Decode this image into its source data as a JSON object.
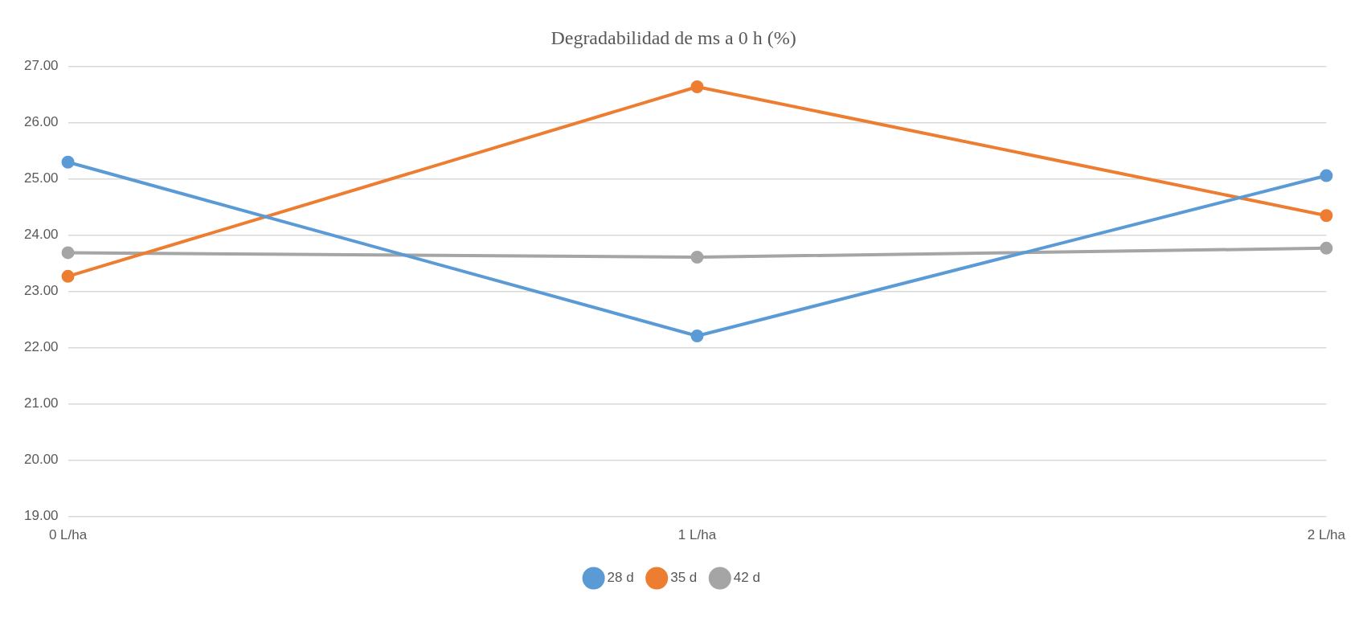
{
  "chart_data": {
    "type": "line",
    "title": "Degradabilidad de ms a 0 h (%)",
    "categories": [
      "0 L/ha",
      "1 L/ha",
      "2 L/ha"
    ],
    "series": [
      {
        "name": "28 d",
        "color": "#5b9bd5",
        "values": [
          25.3,
          22.21,
          25.06
        ]
      },
      {
        "name": "35 d",
        "color": "#ed7d31",
        "values": [
          23.27,
          26.64,
          24.35
        ]
      },
      {
        "name": "42 d",
        "color": "#a5a5a5",
        "values": [
          23.69,
          23.61,
          23.77
        ]
      }
    ],
    "ylim": [
      19,
      27
    ],
    "yticks": [
      {
        "value": 19,
        "label": "19.00"
      },
      {
        "value": 20,
        "label": "20.00"
      },
      {
        "value": 21,
        "label": "21.00"
      },
      {
        "value": 22,
        "label": "22.00"
      },
      {
        "value": 23,
        "label": "23.00"
      },
      {
        "value": 24,
        "label": "24.00"
      },
      {
        "value": 25,
        "label": "25.00"
      },
      {
        "value": 26,
        "label": "26.00"
      },
      {
        "value": 27,
        "label": "27.00"
      }
    ],
    "grid": "y",
    "legend": "bottom",
    "marker": "circle",
    "line_style": "solid"
  }
}
